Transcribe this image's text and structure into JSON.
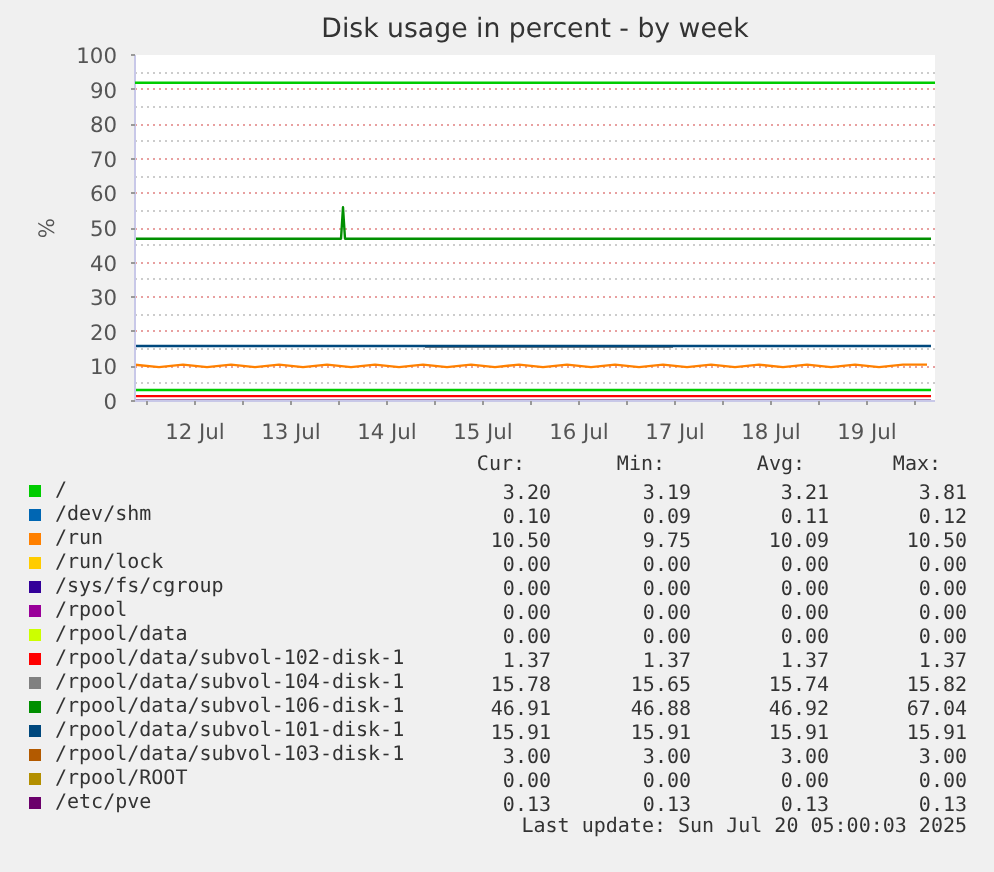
{
  "chart_data": {
    "type": "line",
    "title": "Disk usage in percent - by week",
    "ylabel": "%",
    "x": [
      "2025-07-11T21:00",
      "2025-07-14T00:30",
      "2025-07-14T01:00",
      "2025-07-14T01:30",
      "2025-07-14T21:00",
      "2025-07-14T21:30",
      "2025-07-17T11:30",
      "2025-07-17T12:00",
      "2025-07-20T04:00"
    ],
    "xlim": [
      "2025-07-11T21:00",
      "2025-07-20T05:00"
    ],
    "xticks": [
      {
        "value": "2025-07-12T00:00",
        "label": null
      },
      {
        "value": "2025-07-12T12:00",
        "label": "12 Jul"
      },
      {
        "value": "2025-07-13T00:00",
        "label": null
      },
      {
        "value": "2025-07-13T12:00",
        "label": "13 Jul"
      },
      {
        "value": "2025-07-14T00:00",
        "label": null
      },
      {
        "value": "2025-07-14T12:00",
        "label": "14 Jul"
      },
      {
        "value": "2025-07-15T00:00",
        "label": null
      },
      {
        "value": "2025-07-15T12:00",
        "label": "15 Jul"
      },
      {
        "value": "2025-07-16T00:00",
        "label": null
      },
      {
        "value": "2025-07-16T12:00",
        "label": "16 Jul"
      },
      {
        "value": "2025-07-17T00:00",
        "label": null
      },
      {
        "value": "2025-07-17T12:00",
        "label": "17 Jul"
      },
      {
        "value": "2025-07-18T00:00",
        "label": null
      },
      {
        "value": "2025-07-18T12:00",
        "label": "18 Jul"
      },
      {
        "value": "2025-07-19T00:00",
        "label": null
      },
      {
        "value": "2025-07-19T12:00",
        "label": "19 Jul"
      },
      {
        "value": "2025-07-20T00:00",
        "label": null
      }
    ],
    "ylim": [
      0,
      100
    ],
    "yticks": [
      0,
      10,
      20,
      30,
      40,
      50,
      60,
      70,
      80,
      90,
      100
    ],
    "grid": true,
    "legend": "bottom",
    "marker": "none",
    "line_style": "solid",
    "ref_lines": [
      {
        "axis": "y",
        "value": 92,
        "color": "#00cc00"
      }
    ],
    "series": [
      {
        "name": "/",
        "color": "#00cc00",
        "values": [
          3.2,
          3.2,
          3.2,
          3.2,
          3.2,
          3.2,
          3.2,
          3.2,
          3.2
        ]
      },
      {
        "name": "/dev/shm",
        "color": "#0066b3",
        "values": [
          null,
          null,
          null,
          null,
          null,
          null,
          null,
          null,
          null
        ]
      },
      {
        "name": "/run",
        "color": "#ff8000",
        "x": [
          "2025-07-11T21:00",
          "2025-07-12T03:00",
          "2025-07-12T09:00",
          "2025-07-12T15:00",
          "2025-07-12T21:00",
          "2025-07-13T03:00",
          "2025-07-13T09:00",
          "2025-07-13T15:00",
          "2025-07-13T21:00",
          "2025-07-14T03:00",
          "2025-07-14T09:00",
          "2025-07-14T15:00",
          "2025-07-14T21:00",
          "2025-07-15T03:00",
          "2025-07-15T09:00",
          "2025-07-15T15:00",
          "2025-07-15T21:00",
          "2025-07-16T03:00",
          "2025-07-16T09:00",
          "2025-07-16T15:00",
          "2025-07-16T21:00",
          "2025-07-17T03:00",
          "2025-07-17T09:00",
          "2025-07-17T15:00",
          "2025-07-17T21:00",
          "2025-07-18T03:00",
          "2025-07-18T09:00",
          "2025-07-18T15:00",
          "2025-07-18T21:00",
          "2025-07-19T03:00",
          "2025-07-19T09:00",
          "2025-07-19T15:00",
          "2025-07-19T21:00",
          "2025-07-20T03:00"
        ],
        "values": [
          10.5,
          9.8,
          10.5,
          9.8,
          10.5,
          9.8,
          10.5,
          9.8,
          10.5,
          9.8,
          10.5,
          9.8,
          10.5,
          9.8,
          10.5,
          9.8,
          10.5,
          9.8,
          10.5,
          9.8,
          10.5,
          9.8,
          10.5,
          9.8,
          10.5,
          9.8,
          10.5,
          9.8,
          10.5,
          9.8,
          10.5,
          9.8,
          10.5,
          10.5
        ]
      },
      {
        "name": "/run/lock",
        "color": "#ffcc00",
        "values": [
          null,
          null,
          null,
          null,
          null,
          null,
          null,
          null,
          null
        ]
      },
      {
        "name": "/sys/fs/cgroup",
        "color": "#330099",
        "values": [
          null,
          null,
          null,
          null,
          null,
          null,
          null,
          null,
          null
        ]
      },
      {
        "name": "/rpool",
        "color": "#990099",
        "values": [
          null,
          null,
          null,
          null,
          null,
          null,
          null,
          null,
          null
        ]
      },
      {
        "name": "/rpool/data",
        "color": "#ccff00",
        "values": [
          null,
          null,
          null,
          null,
          null,
          null,
          null,
          null,
          null
        ]
      },
      {
        "name": "/rpool/data/subvol-102-disk-1",
        "color": "#ff0000",
        "values": [
          1.4,
          1.4,
          1.4,
          1.4,
          1.4,
          1.4,
          1.4,
          1.4,
          1.4
        ]
      },
      {
        "name": "/rpool/data/subvol-104-disk-1",
        "color": "#808080",
        "values": [
          null,
          null,
          null,
          null,
          null,
          15.7,
          15.7,
          null,
          null
        ]
      },
      {
        "name": "/rpool/data/subvol-106-disk-1",
        "color": "#008f00",
        "values": [
          46.9,
          46.9,
          56,
          46.9,
          46.9,
          46.9,
          46.9,
          46.9,
          46.9
        ]
      },
      {
        "name": "/rpool/data/subvol-101-disk-1",
        "color": "#00487d",
        "values": [
          15.9,
          15.9,
          15.9,
          15.9,
          15.9,
          15.9,
          15.9,
          15.9,
          15.9
        ]
      },
      {
        "name": "/rpool/data/subvol-103-disk-1",
        "color": "#b35a00",
        "values": [
          null,
          null,
          null,
          null,
          null,
          null,
          null,
          null,
          null
        ]
      },
      {
        "name": "/rpool/ROOT",
        "color": "#b38f00",
        "values": [
          null,
          null,
          null,
          null,
          null,
          null,
          null,
          null,
          null
        ]
      },
      {
        "name": "/etc/pve",
        "color": "#6b006b",
        "values": [
          0.1,
          0.1,
          0.1,
          0.1,
          0.1,
          0.1,
          0.1,
          0.1,
          0.1
        ]
      }
    ],
    "annotations": [
      "Cur:",
      "Min:",
      "Avg:",
      "Max:",
      "3.20",
      "3.19",
      "3.21",
      "3.81",
      "0.10",
      "0.09",
      "0.11",
      "0.12",
      "10.50",
      "9.75",
      "10.09",
      "10.50",
      "0.00",
      "0.00",
      "0.00",
      "0.00",
      "0.00",
      "0.00",
      "0.00",
      "0.00",
      "0.00",
      "0.00",
      "0.00",
      "0.00",
      "0.00",
      "0.00",
      "0.00",
      "0.00",
      "1.37",
      "1.37",
      "1.37",
      "1.37",
      "15.78",
      "15.65",
      "15.74",
      "15.82",
      "46.91",
      "46.88",
      "46.92",
      "67.04",
      "15.91",
      "15.91",
      "15.91",
      "15.91",
      "3.00",
      "3.00",
      "3.00",
      "3.00",
      "0.00",
      "0.00",
      "0.00",
      "0.00",
      "0.13",
      "0.13",
      "0.13",
      "0.13",
      "Last update: Sun Jul 20 05:00:03 2025"
    ]
  }
}
